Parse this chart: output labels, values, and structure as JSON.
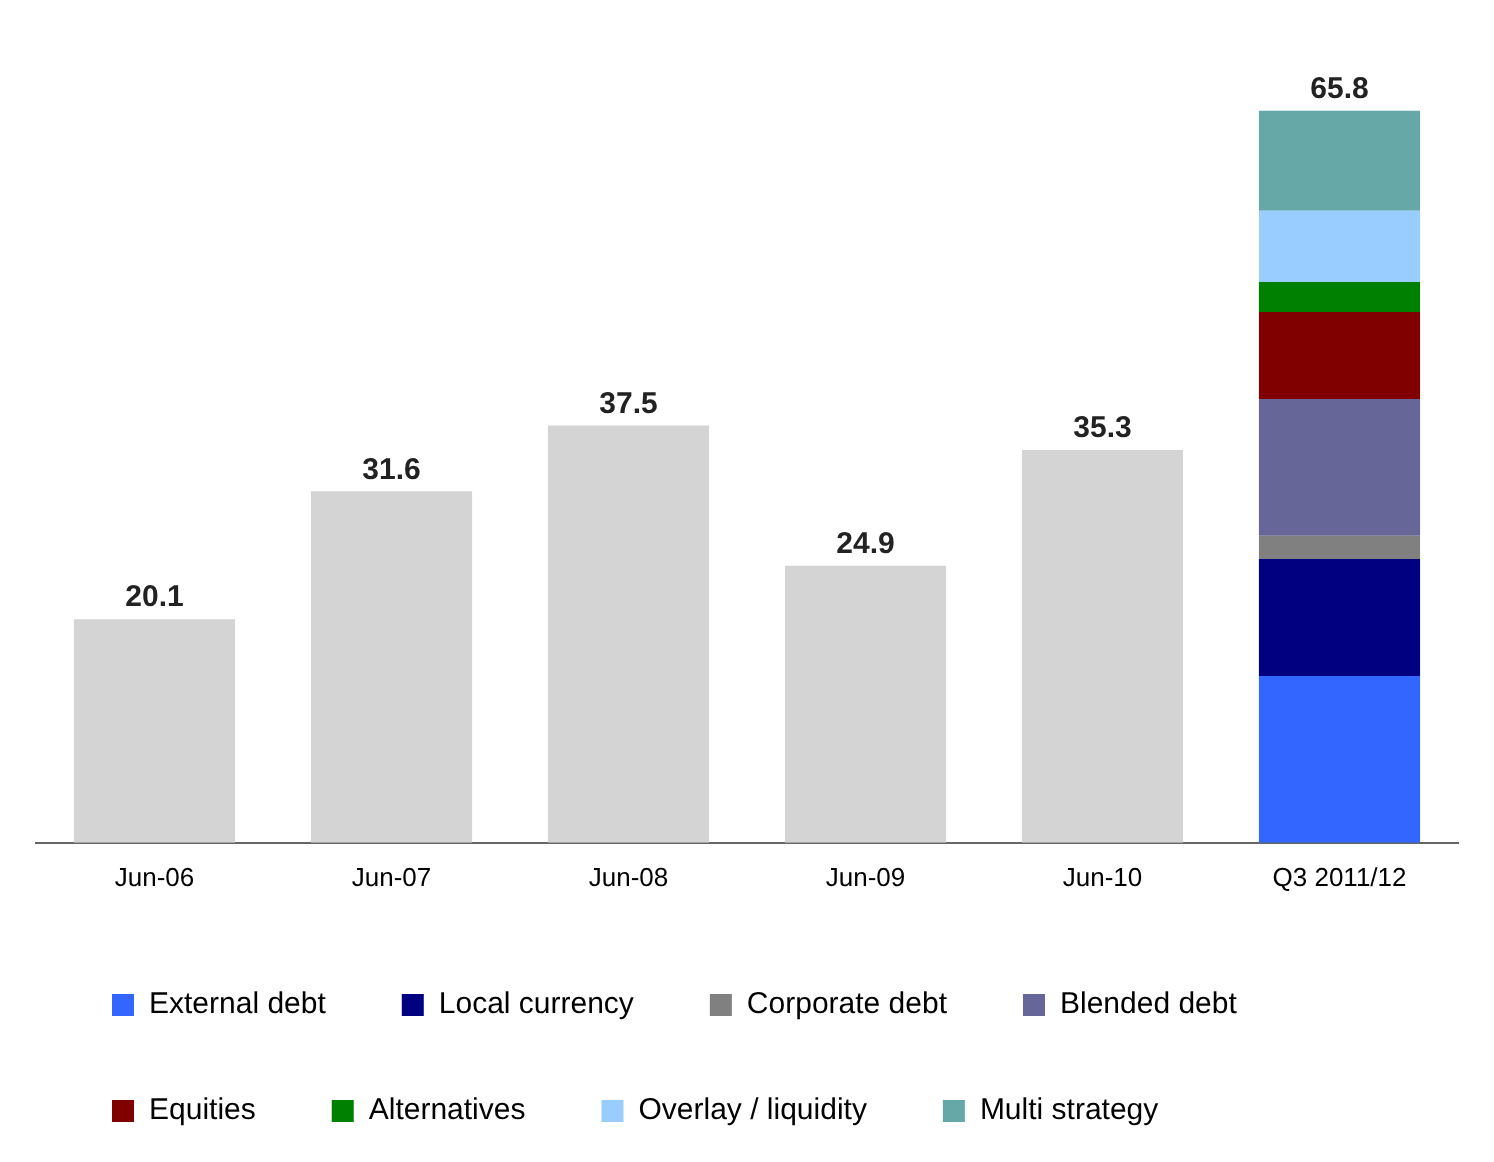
{
  "chart_data": {
    "type": "bar",
    "stacked": true,
    "categories": [
      "Jun-06",
      "Jun-07",
      "Jun-08",
      "Jun-09",
      "Jun-10",
      "Q3 2011/12"
    ],
    "series": [
      {
        "color": "#d4d4d4",
        "values": [
          20.1,
          31.6,
          37.5,
          24.9,
          35.3,
          null
        ],
        "value_labels": [
          "20.1",
          "31.6",
          "37.5",
          "24.9",
          "35.3",
          null
        ]
      },
      {
        "name": "External debt",
        "color": "#3366ff",
        "values": [
          null,
          null,
          null,
          null,
          null,
          15.0
        ]
      },
      {
        "name": "Local currency",
        "color": "#000080",
        "values": [
          null,
          null,
          null,
          null,
          null,
          10.5
        ]
      },
      {
        "name": "Corporate debt",
        "color": "#808080",
        "values": [
          null,
          null,
          null,
          null,
          null,
          2.1
        ]
      },
      {
        "name": "Blended debt",
        "color": "#666699",
        "values": [
          null,
          null,
          null,
          null,
          null,
          12.3
        ]
      },
      {
        "name": "Equities",
        "color": "#800000",
        "values": [
          null,
          null,
          null,
          null,
          null,
          7.8
        ]
      },
      {
        "name": "Alternatives",
        "color": "#008000",
        "values": [
          null,
          null,
          null,
          null,
          null,
          2.7
        ]
      },
      {
        "name": "Overlay / liquidity",
        "color": "#99ccff",
        "values": [
          null,
          null,
          null,
          null,
          null,
          6.4
        ]
      },
      {
        "name": "Multi strategy",
        "color": "#66a8a8",
        "values": [
          null,
          null,
          null,
          null,
          null,
          9.0
        ]
      }
    ],
    "totals": [
      null,
      null,
      null,
      null,
      null,
      "65.8"
    ],
    "grid": false,
    "legend": "bottom"
  }
}
